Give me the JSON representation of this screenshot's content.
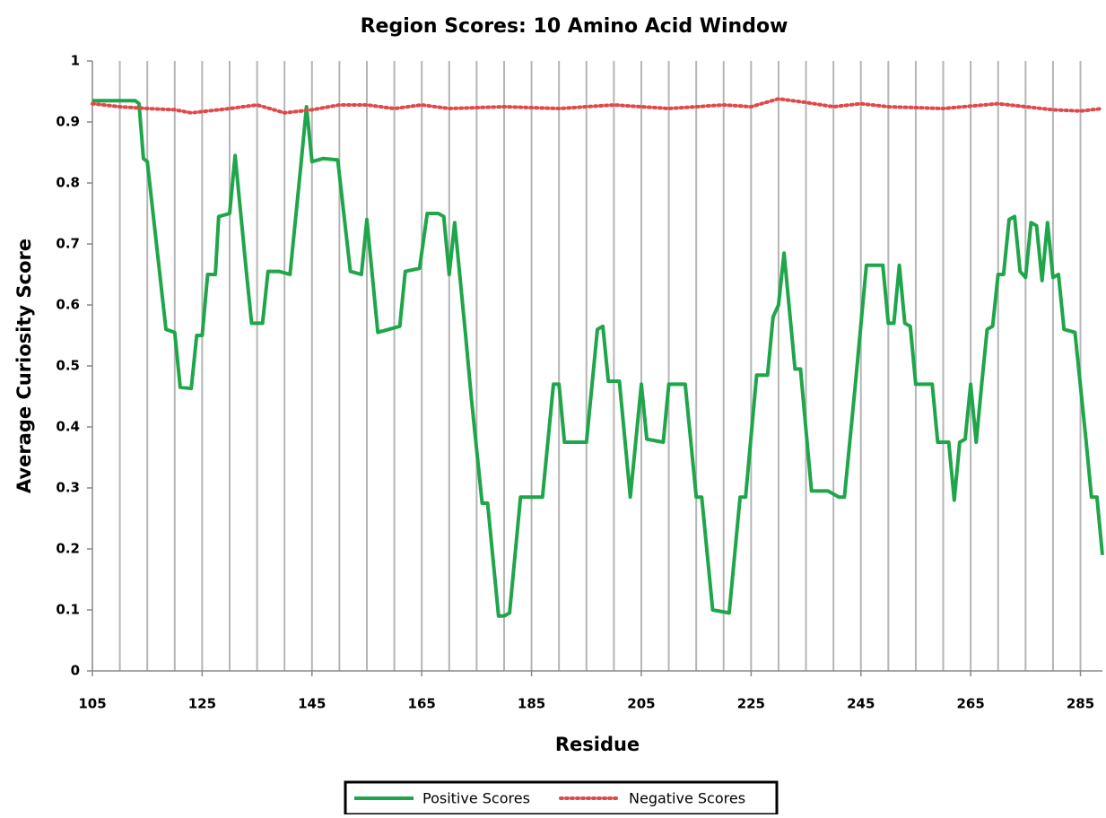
{
  "chart_data": {
    "type": "line",
    "title": "Region Scores: 10 Amino Acid Window",
    "x_label": "Residue",
    "y_label": "Average Curiosity Score",
    "xlim": [
      105,
      289
    ],
    "xticks": [
      105,
      125,
      145,
      165,
      185,
      205,
      225,
      245,
      265,
      285
    ],
    "xgrid": [
      110,
      115,
      120,
      125,
      130,
      135,
      140,
      145,
      150,
      155,
      160,
      165,
      170,
      175,
      180,
      185,
      190,
      195,
      200,
      205,
      210,
      215,
      220,
      225,
      230,
      235,
      240,
      245,
      250,
      255,
      260,
      265,
      270,
      275,
      280,
      285
    ],
    "ylim": [
      0,
      1
    ],
    "yticks": [
      0,
      0.1,
      0.2,
      0.3,
      0.4,
      0.5,
      0.6,
      0.7,
      0.8,
      0.9,
      1
    ],
    "grid": true,
    "legend": "bottom",
    "series": [
      {
        "name": "Positive Scores",
        "color": "#1fa64a",
        "dash": false,
        "x": [
          105,
          112.8,
          113.5,
          114.3,
          115,
          118.4,
          120,
          121,
          123,
          124,
          125,
          126,
          127.4,
          128,
          130,
          131,
          133,
          134,
          136,
          137,
          139,
          141,
          143,
          144,
          145,
          147,
          149.7,
          152,
          154,
          155,
          157,
          159,
          161,
          162,
          164.6,
          166,
          168,
          169,
          170,
          171,
          173,
          174,
          176,
          177,
          179,
          180,
          181,
          183,
          187,
          189,
          190,
          191,
          195,
          197,
          198,
          199,
          201,
          203,
          205,
          206,
          209,
          210,
          213,
          215,
          216,
          218,
          221,
          223,
          224,
          226,
          228,
          229,
          230,
          231,
          233,
          234,
          236,
          239,
          241,
          242,
          244,
          246,
          249,
          250,
          251,
          252,
          253,
          254,
          255,
          258,
          259,
          261,
          262,
          263,
          264,
          265,
          266,
          267,
          268,
          269,
          270,
          271,
          272,
          273,
          274,
          275,
          276,
          277,
          278,
          279,
          280,
          281,
          282,
          284,
          286,
          287,
          288,
          289
        ],
        "values": [
          0.935,
          0.935,
          0.93,
          0.84,
          0.835,
          0.56,
          0.555,
          0.465,
          0.463,
          0.55,
          0.55,
          0.65,
          0.65,
          0.745,
          0.75,
          0.845,
          0.66,
          0.57,
          0.57,
          0.655,
          0.655,
          0.65,
          0.83,
          0.925,
          0.835,
          0.84,
          0.838,
          0.655,
          0.65,
          0.74,
          0.555,
          0.56,
          0.565,
          0.655,
          0.66,
          0.75,
          0.75,
          0.745,
          0.65,
          0.735,
          0.55,
          0.45,
          0.275,
          0.275,
          0.09,
          0.09,
          0.095,
          0.285,
          0.285,
          0.47,
          0.47,
          0.375,
          0.375,
          0.56,
          0.565,
          0.475,
          0.475,
          0.285,
          0.47,
          0.38,
          0.375,
          0.47,
          0.47,
          0.285,
          0.285,
          0.1,
          0.095,
          0.285,
          0.285,
          0.485,
          0.485,
          0.58,
          0.6,
          0.685,
          0.495,
          0.495,
          0.295,
          0.295,
          0.285,
          0.285,
          0.47,
          0.665,
          0.665,
          0.57,
          0.57,
          0.665,
          0.57,
          0.565,
          0.47,
          0.47,
          0.375,
          0.375,
          0.28,
          0.375,
          0.38,
          0.47,
          0.375,
          0.47,
          0.56,
          0.565,
          0.65,
          0.65,
          0.74,
          0.745,
          0.655,
          0.645,
          0.735,
          0.73,
          0.64,
          0.735,
          0.645,
          0.65,
          0.56,
          0.555,
          0.38,
          0.285,
          0.285,
          0.19
        ]
      },
      {
        "name": "Negative Scores",
        "color": "#e0484a",
        "dash": true,
        "x": [
          105,
          110,
          115,
          120,
          123,
          130,
          135,
          140,
          145,
          150,
          155,
          160,
          165,
          170,
          180,
          190,
          200,
          210,
          220,
          225,
          230,
          235,
          240,
          245,
          250,
          260,
          270,
          280,
          285,
          289
        ],
        "values": [
          0.93,
          0.925,
          0.922,
          0.92,
          0.915,
          0.922,
          0.928,
          0.915,
          0.92,
          0.928,
          0.928,
          0.922,
          0.928,
          0.922,
          0.925,
          0.922,
          0.928,
          0.922,
          0.928,
          0.925,
          0.938,
          0.932,
          0.925,
          0.93,
          0.925,
          0.922,
          0.93,
          0.92,
          0.918,
          0.922
        ]
      }
    ]
  }
}
